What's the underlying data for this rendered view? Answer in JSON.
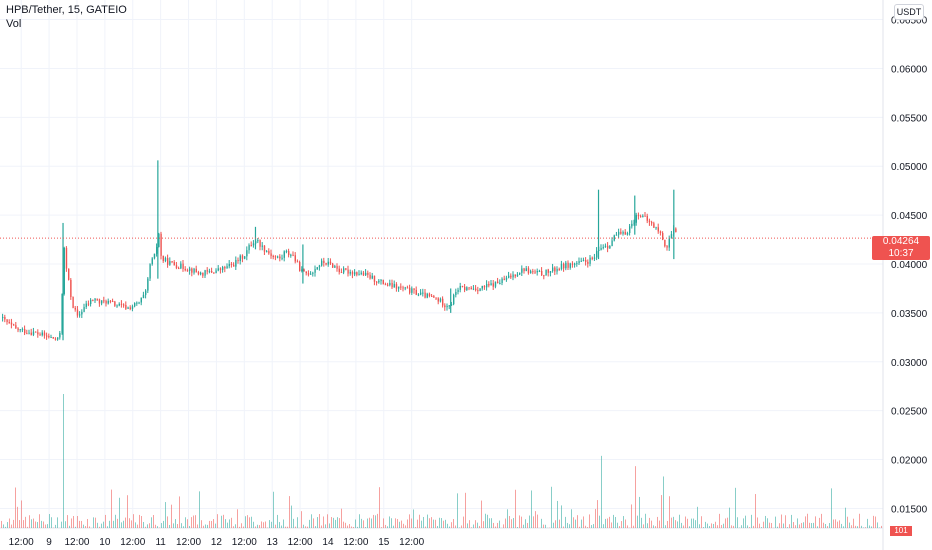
{
  "header": {
    "symbol_line": "HPB/Tether, 15, GATEIO",
    "volume_label": "Vol",
    "currency": "USDT"
  },
  "last_price": {
    "price": "0.04264",
    "countdown": "10:37",
    "volume_tag": "101"
  },
  "colors": {
    "up": "#26a69a",
    "down": "#ef5350",
    "grid": "#f0f3fa",
    "axis_text": "#131722",
    "last_price_line": "#ef5350"
  },
  "chart_data": {
    "type": "candlestick",
    "symbol": "HPB/Tether",
    "interval": "15",
    "exchange": "GATEIO",
    "y_axis": {
      "ticks": [
        "0.06500",
        "0.06000",
        "0.05500",
        "0.05000",
        "0.04500",
        "0.04000",
        "0.03500",
        "0.03000",
        "0.02500",
        "0.02000",
        "0.01500"
      ],
      "range": [
        0.013,
        0.067
      ]
    },
    "x_axis": {
      "ticks": [
        "12:00",
        "9",
        "12:00",
        "10",
        "12:00",
        "11",
        "12:00",
        "12",
        "12:00",
        "13",
        "12:00",
        "14",
        "12:00",
        "15",
        "12:00"
      ],
      "time_range": [
        0.12,
        15.95
      ]
    },
    "price_path": [
      [
        0.12,
        0.0345
      ],
      [
        0.4,
        0.0333
      ],
      [
        0.7,
        0.033
      ],
      [
        1.0,
        0.0325
      ],
      [
        1.15,
        0.0322
      ],
      [
        1.2,
        0.0335
      ],
      [
        1.22,
        0.037
      ],
      [
        1.25,
        0.042
      ],
      [
        1.3,
        0.0395
      ],
      [
        1.4,
        0.036
      ],
      [
        1.5,
        0.0345
      ],
      [
        1.6,
        0.0355
      ],
      [
        1.7,
        0.036
      ],
      [
        1.8,
        0.0365
      ],
      [
        1.9,
        0.036
      ],
      [
        2.0,
        0.0362
      ],
      [
        2.2,
        0.0358
      ],
      [
        2.4,
        0.0355
      ],
      [
        2.6,
        0.036
      ],
      [
        2.72,
        0.037
      ],
      [
        2.75,
        0.038
      ],
      [
        2.8,
        0.04
      ],
      [
        2.9,
        0.041
      ],
      [
        2.95,
        0.0435
      ],
      [
        3.0,
        0.0405
      ],
      [
        3.2,
        0.04
      ],
      [
        3.5,
        0.0395
      ],
      [
        3.7,
        0.039
      ],
      [
        3.9,
        0.0392
      ],
      [
        4.1,
        0.0395
      ],
      [
        4.3,
        0.04
      ],
      [
        4.5,
        0.041
      ],
      [
        4.6,
        0.042
      ],
      [
        4.7,
        0.0425
      ],
      [
        4.8,
        0.0418
      ],
      [
        5.0,
        0.0408
      ],
      [
        5.15,
        0.0405
      ],
      [
        5.2,
        0.0412
      ],
      [
        5.35,
        0.041
      ],
      [
        5.45,
        0.0398
      ],
      [
        5.55,
        0.039
      ],
      [
        5.7,
        0.0392
      ],
      [
        5.8,
        0.0398
      ],
      [
        5.9,
        0.0402
      ],
      [
        6.0,
        0.04
      ],
      [
        6.1,
        0.0398
      ],
      [
        6.2,
        0.0393
      ],
      [
        6.4,
        0.0392
      ],
      [
        6.6,
        0.039
      ],
      [
        6.8,
        0.0385
      ],
      [
        6.9,
        0.0382
      ],
      [
        7.0,
        0.038
      ],
      [
        7.1,
        0.0378
      ],
      [
        7.3,
        0.0375
      ],
      [
        7.5,
        0.0372
      ],
      [
        7.7,
        0.0368
      ],
      [
        7.9,
        0.0365
      ],
      [
        8.0,
        0.0362
      ],
      [
        8.1,
        0.0358
      ],
      [
        8.2,
        0.036
      ],
      [
        8.3,
        0.0375
      ],
      [
        8.5,
        0.0375
      ],
      [
        8.7,
        0.0375
      ],
      [
        8.9,
        0.0378
      ],
      [
        9.0,
        0.038
      ],
      [
        9.2,
        0.0385
      ],
      [
        9.4,
        0.0392
      ],
      [
        9.5,
        0.0395
      ],
      [
        9.6,
        0.0392
      ],
      [
        9.8,
        0.039
      ],
      [
        10.0,
        0.0393
      ],
      [
        10.2,
        0.0398
      ],
      [
        10.4,
        0.04
      ],
      [
        10.6,
        0.0402
      ],
      [
        10.75,
        0.0405
      ],
      [
        10.85,
        0.0415
      ],
      [
        10.95,
        0.042
      ],
      [
        11.0,
        0.0418
      ],
      [
        11.05,
        0.0422
      ],
      [
        11.15,
        0.043
      ],
      [
        11.3,
        0.043
      ],
      [
        11.45,
        0.0442
      ],
      [
        11.55,
        0.0452
      ],
      [
        11.7,
        0.0445
      ],
      [
        11.8,
        0.044
      ],
      [
        11.9,
        0.0435
      ],
      [
        12.0,
        0.0425
      ],
      [
        12.05,
        0.0415
      ],
      [
        12.1,
        0.0425
      ],
      [
        12.15,
        0.043
      ],
      [
        12.2,
        0.0435
      ],
      [
        12.25,
        0.0426
      ]
    ],
    "spikes": [
      {
        "t": 1.25,
        "high": 0.0442,
        "low": 0.0322
      },
      {
        "t": 2.95,
        "high": 0.0506,
        "low": 0.0385
      },
      {
        "t": 4.7,
        "high": 0.0438,
        "low": 0.0415
      },
      {
        "t": 5.55,
        "high": 0.042,
        "low": 0.038
      },
      {
        "t": 8.2,
        "high": 0.0375,
        "low": 0.035
      },
      {
        "t": 10.85,
        "high": 0.0476,
        "low": 0.0405
      },
      {
        "t": 11.5,
        "high": 0.047,
        "low": 0.043
      },
      {
        "t": 12.2,
        "high": 0.0476,
        "low": 0.0405
      }
    ],
    "volume_spikes": [
      {
        "t": 1.25,
        "v": 0.65
      },
      {
        "t": 2.95,
        "v": 0.52
      },
      {
        "t": 10.9,
        "v": 0.35
      },
      {
        "t": 12.2,
        "v": 0.32
      },
      {
        "t": 4.5,
        "v": 0.22
      },
      {
        "t": 5.5,
        "v": 0.25
      },
      {
        "t": 10.0,
        "v": 0.2
      },
      {
        "t": 11.5,
        "v": 0.3
      },
      {
        "t": 12.0,
        "v": 0.25
      }
    ]
  }
}
